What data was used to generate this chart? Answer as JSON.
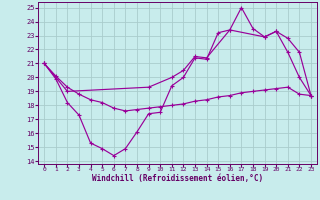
{
  "bg_color": "#c8ecec",
  "grid_color": "#aacccc",
  "line_color": "#990099",
  "xlabel": "Windchill (Refroidissement éolien,°C)",
  "xlim_min": -0.5,
  "xlim_max": 23.5,
  "ylim_min": 13.8,
  "ylim_max": 25.4,
  "xticks": [
    0,
    1,
    2,
    3,
    4,
    5,
    6,
    7,
    8,
    9,
    10,
    11,
    12,
    13,
    14,
    15,
    16,
    17,
    18,
    19,
    20,
    21,
    22,
    23
  ],
  "yticks": [
    14,
    15,
    16,
    17,
    18,
    19,
    20,
    21,
    22,
    23,
    24,
    25
  ],
  "curve1_x": [
    0,
    1,
    2,
    3,
    4,
    5,
    6,
    7,
    8,
    9,
    10,
    11,
    12,
    13,
    14,
    15,
    16,
    17,
    18,
    19,
    20,
    21,
    22,
    23
  ],
  "curve1_y": [
    21.0,
    19.9,
    18.2,
    17.3,
    15.3,
    14.9,
    14.4,
    14.9,
    16.1,
    17.4,
    17.5,
    19.4,
    20.0,
    21.4,
    21.3,
    23.2,
    23.4,
    25.0,
    23.5,
    22.9,
    23.3,
    21.8,
    20.0,
    18.7
  ],
  "curve2_x": [
    0,
    2,
    9,
    11,
    12,
    13,
    14,
    16,
    19,
    20,
    21,
    22,
    23
  ],
  "curve2_y": [
    21.0,
    19.0,
    19.3,
    20.0,
    20.5,
    21.5,
    21.4,
    23.4,
    22.9,
    23.3,
    22.8,
    21.8,
    18.7
  ],
  "curve3_x": [
    0,
    1,
    2,
    3,
    4,
    5,
    6,
    7,
    8,
    9,
    10,
    11,
    12,
    13,
    14,
    15,
    16,
    17,
    18,
    19,
    20,
    21,
    22,
    23
  ],
  "curve3_y": [
    21.0,
    20.1,
    19.3,
    18.8,
    18.4,
    18.2,
    17.8,
    17.6,
    17.7,
    17.8,
    17.9,
    18.0,
    18.1,
    18.3,
    18.4,
    18.6,
    18.7,
    18.9,
    19.0,
    19.1,
    19.2,
    19.3,
    18.8,
    18.7
  ]
}
